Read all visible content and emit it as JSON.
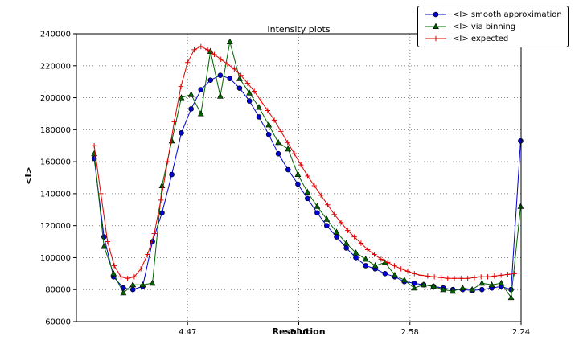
{
  "chart_data": {
    "type": "line",
    "title": "Intensity plots",
    "xlabel": "Resolution",
    "ylabel": "<I>",
    "grid": true,
    "legend_position": "upper right",
    "x_axis": {
      "min": 0.0,
      "max": 0.2,
      "scale_note": "linear in 1/d^2; tick labels show resolution d",
      "ticks": [
        {
          "pos": 0.05,
          "label": "4.47"
        },
        {
          "pos": 0.1,
          "label": "3.16"
        },
        {
          "pos": 0.15,
          "label": "2.58"
        },
        {
          "pos": 0.2,
          "label": "2.24"
        }
      ]
    },
    "y_axis": {
      "min": 60000,
      "max": 240000,
      "ticks": [
        60000,
        80000,
        100000,
        120000,
        140000,
        160000,
        180000,
        200000,
        220000,
        240000
      ]
    },
    "x_shared": [
      0.008,
      0.0124,
      0.0167,
      0.0211,
      0.0254,
      0.0298,
      0.0342,
      0.0385,
      0.0429,
      0.0472,
      0.0516,
      0.056,
      0.0603,
      0.0647,
      0.069,
      0.0734,
      0.0778,
      0.0821,
      0.0865,
      0.0908,
      0.0952,
      0.0996,
      0.1039,
      0.1083,
      0.1126,
      0.117,
      0.1214,
      0.1257,
      0.1301,
      0.1344,
      0.1388,
      0.1432,
      0.1475,
      0.1519,
      0.1562,
      0.1606,
      0.165,
      0.1693,
      0.1737,
      0.178,
      0.1824,
      0.1868,
      0.1911,
      0.1955,
      0.1998
    ],
    "series": [
      {
        "name": "<I> smooth approximation",
        "color": "#0000d0",
        "marker": "circle",
        "y": [
          162000,
          113000,
          88000,
          81000,
          80000,
          82000,
          110000,
          128000,
          152000,
          178000,
          193000,
          205000,
          211000,
          214000,
          212000,
          206000,
          198000,
          188000,
          177000,
          165000,
          155000,
          146000,
          137000,
          128000,
          120000,
          113000,
          106000,
          100000,
          95000,
          93000,
          90000,
          88000,
          85000,
          84000,
          83000,
          82000,
          81000,
          80000,
          80000,
          79500,
          80000,
          81000,
          82000,
          80000,
          173000
        ]
      },
      {
        "name": "<I> via binning",
        "color": "#006400",
        "marker": "triangle",
        "y": [
          165000,
          107000,
          90000,
          78000,
          83000,
          83000,
          84000,
          145000,
          173000,
          200000,
          202000,
          190000,
          229000,
          201000,
          235000,
          212000,
          203000,
          194000,
          183000,
          172000,
          168000,
          152000,
          141000,
          132000,
          124000,
          116000,
          109000,
          103000,
          99000,
          95000,
          97000,
          89000,
          86000,
          81000,
          83000,
          82000,
          80000,
          79000,
          81000,
          80000,
          84000,
          83000,
          84000,
          75000,
          132000
        ]
      },
      {
        "name": "<I> expected",
        "color": "#e00000",
        "marker": "plus",
        "x": [
          0.008,
          0.011,
          0.014,
          0.017,
          0.02,
          0.023,
          0.026,
          0.029,
          0.032,
          0.035,
          0.038,
          0.041,
          0.044,
          0.047,
          0.05,
          0.053,
          0.056,
          0.059,
          0.062,
          0.065,
          0.068,
          0.071,
          0.074,
          0.077,
          0.08,
          0.083,
          0.086,
          0.089,
          0.092,
          0.095,
          0.098,
          0.101,
          0.104,
          0.107,
          0.11,
          0.113,
          0.116,
          0.119,
          0.122,
          0.125,
          0.128,
          0.131,
          0.134,
          0.137,
          0.14,
          0.143,
          0.146,
          0.149,
          0.152,
          0.155,
          0.158,
          0.161,
          0.164,
          0.167,
          0.17,
          0.173,
          0.176,
          0.179,
          0.182,
          0.185,
          0.188,
          0.191,
          0.194,
          0.197
        ],
        "y": [
          170000,
          140000,
          110000,
          95000,
          88000,
          87000,
          88000,
          93000,
          102000,
          115000,
          136000,
          160000,
          185000,
          207000,
          222000,
          230000,
          232000,
          230000,
          227000,
          224000,
          221000,
          218000,
          214000,
          209000,
          204000,
          198000,
          192000,
          186000,
          179000,
          172000,
          165000,
          158000,
          151000,
          145000,
          139000,
          133000,
          127000,
          122000,
          117000,
          113000,
          109000,
          105000,
          102000,
          99000,
          97000,
          95000,
          93000,
          91500,
          90000,
          89000,
          88500,
          88000,
          87500,
          87000,
          87000,
          87000,
          87000,
          87500,
          88000,
          88000,
          88500,
          89000,
          89500,
          90000
        ]
      }
    ]
  }
}
